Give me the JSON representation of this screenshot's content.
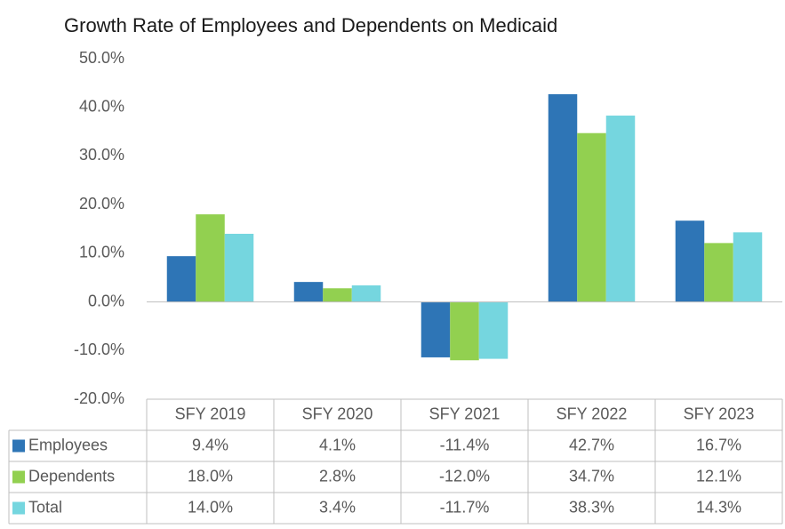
{
  "chart_data": {
    "type": "bar",
    "title": "Growth Rate of Employees and Dependents on Medicaid",
    "categories": [
      "SFY 2019",
      "SFY 2020",
      "SFY 2021",
      "SFY 2022",
      "SFY 2023"
    ],
    "series": [
      {
        "name": "Employees",
        "color": "#2e75b6",
        "values": [
          9.4,
          4.1,
          -11.4,
          42.7,
          16.7
        ],
        "value_labels": [
          "9.4%",
          "4.1%",
          "-11.4%",
          "42.7%",
          "16.7%"
        ]
      },
      {
        "name": "Dependents",
        "color": "#92d050",
        "values": [
          18.0,
          2.8,
          -12.0,
          34.7,
          12.1
        ],
        "value_labels": [
          "18.0%",
          "2.8%",
          "-12.0%",
          "34.7%",
          "12.1%"
        ]
      },
      {
        "name": "Total",
        "color": "#75d6df",
        "values": [
          14.0,
          3.4,
          -11.7,
          38.3,
          14.3
        ],
        "value_labels": [
          "14.0%",
          "3.4%",
          "-11.7%",
          "38.3%",
          "14.3%"
        ]
      }
    ],
    "ylim": [
      -20,
      50
    ],
    "yticks": [
      {
        "value": -20,
        "label": "-20.0%"
      },
      {
        "value": -10,
        "label": "-10.0%"
      },
      {
        "value": 0,
        "label": "0.0%"
      },
      {
        "value": 10,
        "label": "10.0%"
      },
      {
        "value": 20,
        "label": "20.0%"
      },
      {
        "value": 30,
        "label": "30.0%"
      },
      {
        "value": 40,
        "label": "40.0%"
      },
      {
        "value": 50,
        "label": "50.0%"
      }
    ],
    "grid": false
  }
}
